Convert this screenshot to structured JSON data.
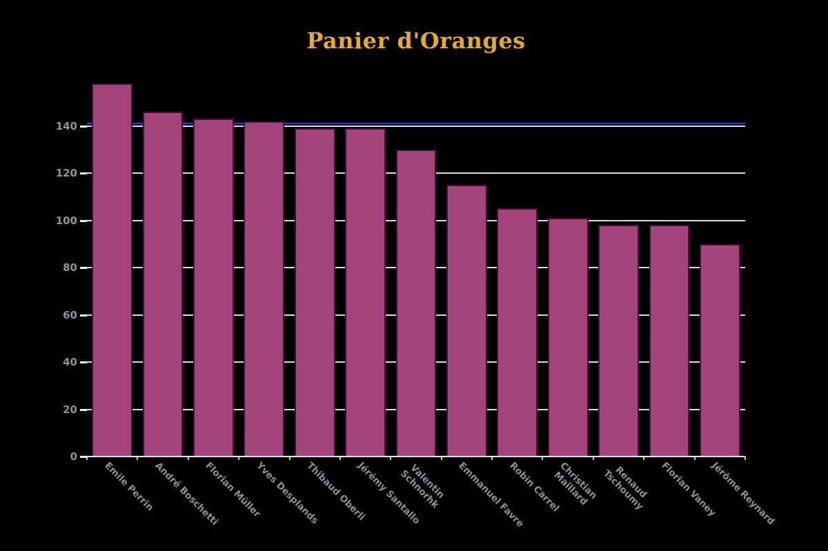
{
  "page": {
    "background_color": "#000000"
  },
  "chart_data": {
    "type": "bar",
    "title": "Panier d'Oranges",
    "categories": [
      "Emile Perrin",
      "André Boschetti",
      "Florian Müller",
      "Yves Desplands",
      "Thibaud Oberli",
      "Jérémy Santallo",
      "Valentin Schnorhk",
      "Emmanuel Favre",
      "Robin Carrel",
      "Christian Maillard",
      "Renaud Tschoumy",
      "Florian Vaney",
      "Jérôme Reynard"
    ],
    "category_label_lines": [
      [
        "Emile Perrin"
      ],
      [
        "André Boschetti"
      ],
      [
        "Florian Müller"
      ],
      [
        "Yves Desplands"
      ],
      [
        "Thibaud Oberli"
      ],
      [
        "Jérémy Santallo"
      ],
      [
        "Valentin",
        "Schnorhk"
      ],
      [
        "Emmanuel Favre"
      ],
      [
        "Robin Carrel"
      ],
      [
        "Christian",
        "Maillard"
      ],
      [
        "Renaud",
        "Tschoumy"
      ],
      [
        "Florian Vaney"
      ],
      [
        "Jérôme Reynard"
      ]
    ],
    "values": [
      158,
      146,
      143,
      142,
      139,
      139,
      130,
      115,
      105,
      101,
      98,
      98,
      90
    ],
    "xlabel": "",
    "ylabel": "",
    "yticks": [
      0,
      20,
      40,
      60,
      80,
      100,
      120,
      140
    ],
    "ylim": [
      0,
      160
    ],
    "grid": true,
    "legend": false,
    "threshold_line": {
      "value": 141,
      "color": "#2C3CE6"
    },
    "colors": {
      "title": "#E7AB29",
      "bar_fill": "#A3447C",
      "bar_border": "#401232",
      "gridline": "#D9DDE2",
      "axis_line": "#ECEEF2",
      "tick_mark": "#EEF0F4",
      "y_tick_label": "#8D939C",
      "x_tick_label": "#8C9096"
    }
  }
}
